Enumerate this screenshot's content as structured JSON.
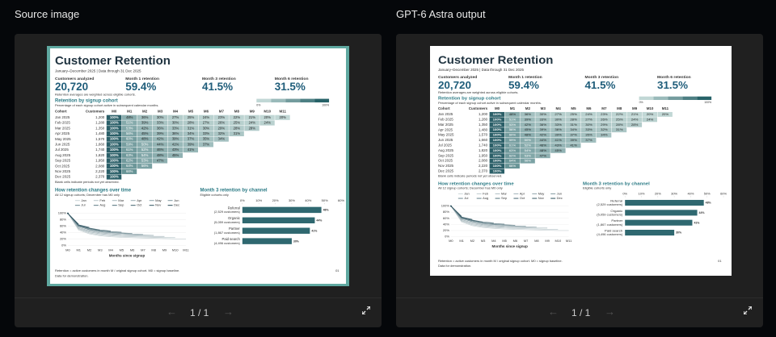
{
  "ui": {
    "left_label": "Source image",
    "right_label": "GPT-6 Astra output",
    "page_indicator": "1 / 1"
  },
  "slide": {
    "title": "Customer Retention",
    "subtitle": "January–December 2025  |  Data through 31 Dec 2025",
    "kpis": [
      {
        "label": "Customers analyzed",
        "value": "20,720"
      },
      {
        "label": "Month 1 retention",
        "value": "59.4%"
      },
      {
        "label": "Month 3 retention",
        "value": "41.5%"
      },
      {
        "label": "Month 6 retention",
        "value": "31.5%"
      }
    ],
    "kpi_note": "Retention averages are weighted across eligible cohorts.",
    "table": {
      "title": "Retention by signup cohort",
      "subtitle": "Percentage of each signup cohort active in subsequent calendar months.",
      "scale_min": "0%",
      "scale_max": "100%",
      "headers": [
        "Cohort",
        "Customers",
        "M0",
        "M1",
        "M2",
        "M3",
        "M4",
        "M5",
        "M6",
        "M7",
        "M8",
        "M9",
        "M10",
        "M11"
      ],
      "rows": [
        {
          "cohort": "Jan 2025",
          "customers": "1,200",
          "values": [
            100,
            48,
            36,
            30,
            27,
            25,
            24,
            23,
            22,
            21,
            20,
            20
          ],
          "value_labels": [
            "100%",
            "48%",
            "36%",
            "30%",
            "27%",
            "25%",
            "24%",
            "23%",
            "22%",
            "21%",
            "20%",
            "20%"
          ]
        },
        {
          "cohort": "Feb 2025",
          "customers": "1,280",
          "values": [
            100,
            51,
            39,
            33,
            30,
            28,
            27,
            26,
            25,
            24,
            24
          ],
          "value_labels": [
            "100%",
            "51%",
            "39%",
            "33%",
            "30%",
            "28%",
            "27%",
            "26%",
            "25%",
            "24%",
            "24%"
          ]
        },
        {
          "cohort": "Mar 2025",
          "customers": "1,350",
          "values": [
            100,
            53,
            42,
            36,
            33,
            31,
            30,
            29,
            28,
            28
          ],
          "value_labels": [
            "100%",
            "53%",
            "42%",
            "36%",
            "33%",
            "31%",
            "30%",
            "29%",
            "28%",
            "28%"
          ]
        },
        {
          "cohort": "Apr 2025",
          "customers": "1,480",
          "values": [
            100,
            56,
            45,
            39,
            36,
            34,
            33,
            32,
            31
          ],
          "value_labels": [
            "100%",
            "56%",
            "45%",
            "39%",
            "36%",
            "34%",
            "33%",
            "32%",
            "31%"
          ]
        },
        {
          "cohort": "May 2025",
          "customers": "1,570",
          "values": [
            100,
            60,
            48,
            42,
            39,
            37,
            35,
            34
          ],
          "value_labels": [
            "100%",
            "60%",
            "48%",
            "42%",
            "39%",
            "37%",
            "35%",
            "34%"
          ]
        },
        {
          "cohort": "Jun 2025",
          "customers": "1,660",
          "values": [
            100,
            59,
            50,
            44,
            41,
            39,
            37
          ],
          "value_labels": [
            "100%",
            "59%",
            "50%",
            "44%",
            "41%",
            "39%",
            "37%"
          ]
        },
        {
          "cohort": "Jul 2025",
          "customers": "1,740",
          "values": [
            100,
            61,
            52,
            46,
            43,
            41
          ],
          "value_labels": [
            "100%",
            "61%",
            "52%",
            "46%",
            "43%",
            "41%"
          ]
        },
        {
          "cohort": "Aug 2025",
          "customers": "1,820",
          "values": [
            100,
            63,
            54,
            48,
            45
          ],
          "value_labels": [
            "100%",
            "63%",
            "54%",
            "48%",
            "45%"
          ]
        },
        {
          "cohort": "Sep 2025",
          "customers": "1,950",
          "values": [
            100,
            62,
            53,
            47
          ],
          "value_labels": [
            "100%",
            "62%",
            "53%",
            "47%"
          ]
        },
        {
          "cohort": "Oct 2025",
          "customers": "2,080",
          "values": [
            100,
            64,
            56
          ],
          "value_labels": [
            "100%",
            "64%",
            "56%"
          ]
        },
        {
          "cohort": "Nov 2025",
          "customers": "2,220",
          "values": [
            100,
            66
          ],
          "value_labels": [
            "100%",
            "66%"
          ]
        },
        {
          "cohort": "Dec 2025",
          "customers": "2,370",
          "values": [
            100
          ],
          "value_labels": [
            "100%"
          ]
        }
      ],
      "note": "Blank cells indicate periods not yet observed."
    },
    "line_chart": {
      "type": "line",
      "title": "How retention changes over time",
      "subtitle": "All 12 signup cohorts; December has M0 only",
      "legend": [
        "Jan",
        "Feb",
        "Mar",
        "Apr",
        "May",
        "Jun",
        "Jul",
        "Aug",
        "Sep",
        "Oct",
        "Nov",
        "Dec"
      ],
      "colors": [
        "#c9d3d6",
        "#b9c6ca",
        "#a9b9be",
        "#99acb2",
        "#899fa6",
        "#79929a",
        "#6a858e",
        "#5a7882",
        "#4b6b76",
        "#3c5e6a",
        "#2e525e",
        "#204652"
      ],
      "categories": [
        "M0",
        "M1",
        "M2",
        "M3",
        "M4",
        "M5",
        "M6",
        "M7",
        "M8",
        "M9",
        "M10",
        "M11"
      ],
      "xlabel": "Months since signup",
      "ylim": [
        0,
        100
      ],
      "yticks": [
        {
          "value": 0,
          "label": "0%"
        },
        {
          "value": 20,
          "label": "20%"
        },
        {
          "value": 40,
          "label": "40%"
        },
        {
          "value": 60,
          "label": "60%"
        },
        {
          "value": 80,
          "label": "80%"
        },
        {
          "value": 100,
          "label": "100%"
        }
      ]
    },
    "bar_chart": {
      "type": "bar",
      "title": "Month 3 retention by channel",
      "subtitle": "Eligible cohorts only",
      "color": "#2f6870",
      "categories": [
        "Referral",
        "Organic",
        "Partner",
        "Paid search"
      ],
      "sublabels": [
        "(2,529 customers)",
        "(5,059 customers)",
        "(1,867 customers)",
        "(4,496 customers)"
      ],
      "values": [
        48,
        44,
        41,
        30
      ],
      "value_labels": [
        "48%",
        "44%",
        "41%",
        "30%"
      ],
      "xlim": [
        0,
        60
      ],
      "xticks": [
        {
          "value": 0,
          "label": "0%"
        },
        {
          "value": 10,
          "label": "10%"
        },
        {
          "value": 20,
          "label": "20%"
        },
        {
          "value": 30,
          "label": "30%"
        },
        {
          "value": 40,
          "label": "40%"
        },
        {
          "value": 50,
          "label": "50%"
        },
        {
          "value": 60,
          "label": "60%"
        }
      ]
    },
    "footer": "Retention = active customers in month M / original signup cohort. M0 = signup baseline.",
    "footer2": "Data for demonstration.",
    "page_number": "01"
  }
}
